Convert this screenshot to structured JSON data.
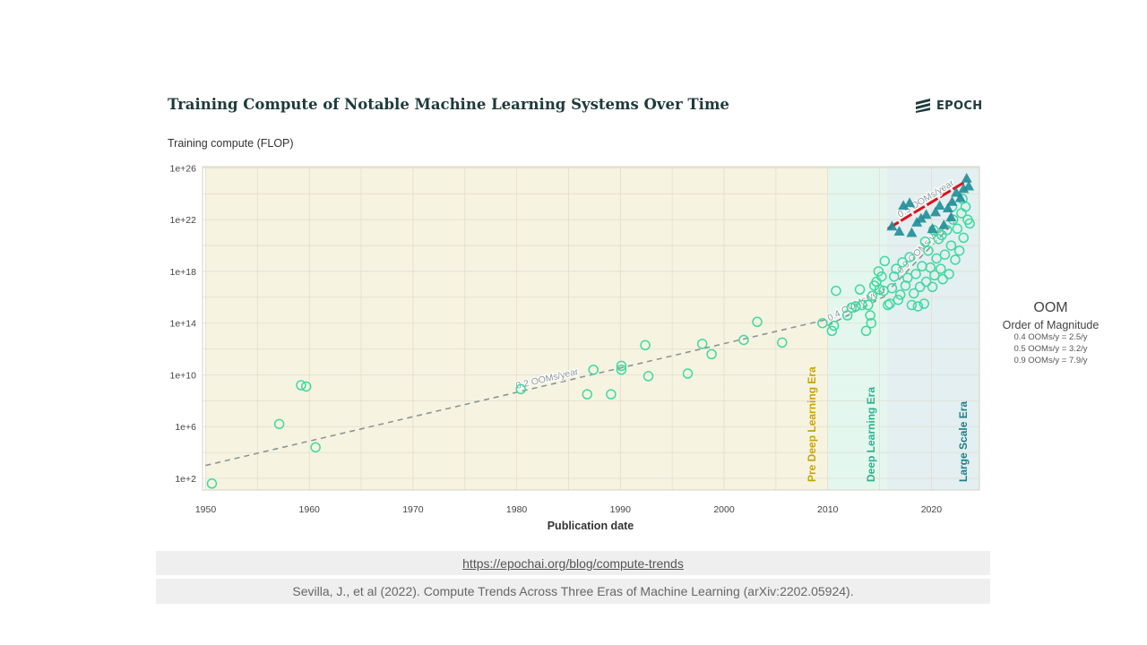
{
  "header": {
    "title": "Training Compute of Notable Machine Learning Systems Over Time",
    "logo_text": "EPOCH",
    "logo_icon": "epoch-stripes-icon"
  },
  "colors": {
    "pre_dl": "#c9a400",
    "dl": "#2bb38a",
    "large_scale": "#1b7f8a",
    "circle": "#3fd9a0",
    "triangle": "#1f8d98",
    "trend": "#8a9696",
    "red": "#e0101a"
  },
  "chart_data": {
    "type": "scatter",
    "title": "Training Compute of Notable Machine Learning Systems Over Time",
    "xlabel": "Publication date",
    "ylabel": "Training compute (FLOP)",
    "xlim": [
      1950,
      2025
    ],
    "ylim_log10": [
      1,
      26
    ],
    "x_ticks": [
      1950,
      1960,
      1970,
      1980,
      1990,
      2000,
      2010,
      2020
    ],
    "x_tick_labels": [
      "1950",
      "1960",
      "1970",
      "1980",
      "1990",
      "2000",
      "2010",
      "2020"
    ],
    "y_ticks_log10": [
      2,
      6,
      10,
      14,
      18,
      22,
      26
    ],
    "y_tick_labels": [
      "1e+2",
      "1e+6",
      "1e+10",
      "1e+14",
      "1e+18",
      "1e+22",
      "1e+26"
    ],
    "grid": true,
    "eras": [
      {
        "name": "Pre Deep Learning Era",
        "x0": 1950,
        "x1": 2010
      },
      {
        "name": "Deep Learning Era",
        "x0": 2010,
        "x1": 2015.7
      },
      {
        "name": "Large Scale Era",
        "x0": 2015.7,
        "x1": 2025
      }
    ],
    "trends": [
      {
        "label": "0.2 OOMs/year",
        "x0": 1950,
        "y0": 3.0,
        "x1": 2010,
        "y1": 14.3,
        "style": "dashed"
      },
      {
        "label": "0.4 OOMs/year",
        "x0": 2010,
        "y0": 13.8,
        "x1": 2015.8,
        "y1": 16.2,
        "style": "dashed"
      },
      {
        "label": "0.9 OOMs/year",
        "x0": 2016.2,
        "y0": 16.8,
        "x1": 2022.2,
        "y1": 21.8,
        "style": "dashed"
      },
      {
        "label": "0.5 OOMs/year",
        "x0": 2015.8,
        "y0": 21.3,
        "x1": 2023.4,
        "y1": 25.0,
        "style": "dashed-red"
      }
    ],
    "circles": [
      [
        1950.6,
        1.6
      ],
      [
        1957.1,
        6.2
      ],
      [
        1959.2,
        9.2
      ],
      [
        1959.7,
        9.1
      ],
      [
        1960.6,
        4.4
      ],
      [
        1980.4,
        8.9
      ],
      [
        1986.8,
        8.5
      ],
      [
        1987.4,
        10.4
      ],
      [
        1989.1,
        8.5
      ],
      [
        1990.1,
        10.7
      ],
      [
        1990.1,
        10.4
      ],
      [
        1992.4,
        12.3
      ],
      [
        1992.7,
        9.9
      ],
      [
        1996.5,
        10.1
      ],
      [
        1997.9,
        12.4
      ],
      [
        1998.8,
        11.6
      ],
      [
        2001.9,
        12.7
      ],
      [
        2003.2,
        14.1
      ],
      [
        2005.6,
        12.5
      ],
      [
        2009.5,
        14.0
      ],
      [
        2010.4,
        13.4
      ],
      [
        2010.6,
        13.8
      ],
      [
        2010.8,
        16.5
      ],
      [
        2011.9,
        14.6
      ],
      [
        2012.3,
        15.2
      ],
      [
        2012.7,
        15.3
      ],
      [
        2013.1,
        16.6
      ],
      [
        2013.3,
        15.4
      ],
      [
        2013.7,
        13.4
      ],
      [
        2013.9,
        15.4
      ],
      [
        2014.1,
        14.6
      ],
      [
        2014.2,
        14.0
      ],
      [
        2014.3,
        16.1
      ],
      [
        2014.5,
        16.9
      ],
      [
        2014.7,
        17.2
      ],
      [
        2014.9,
        18.0
      ],
      [
        2015.0,
        16.6
      ],
      [
        2015.2,
        17.6
      ],
      [
        2015.4,
        16.5
      ],
      [
        2015.5,
        18.8
      ],
      [
        2015.8,
        15.4
      ],
      [
        2016.0,
        15.5
      ],
      [
        2016.2,
        16.7
      ],
      [
        2016.4,
        17.6
      ],
      [
        2016.6,
        18.2
      ],
      [
        2016.8,
        15.8
      ],
      [
        2017.0,
        16.2
      ],
      [
        2017.2,
        18.7
      ],
      [
        2017.5,
        16.9
      ],
      [
        2017.7,
        17.5
      ],
      [
        2017.9,
        19.1
      ],
      [
        2018.1,
        15.4
      ],
      [
        2018.3,
        16.3
      ],
      [
        2018.5,
        17.8
      ],
      [
        2018.7,
        15.3
      ],
      [
        2018.9,
        16.8
      ],
      [
        2019.1,
        18.4
      ],
      [
        2019.3,
        15.5
      ],
      [
        2019.5,
        17.2
      ],
      [
        2019.7,
        19.6
      ],
      [
        2019.9,
        18.3
      ],
      [
        2020.1,
        16.8
      ],
      [
        2020.3,
        17.7
      ],
      [
        2020.5,
        19.0
      ],
      [
        2020.7,
        20.5
      ],
      [
        2020.9,
        18.2
      ],
      [
        2021.1,
        17.4
      ],
      [
        2021.3,
        19.3
      ],
      [
        2021.5,
        21.2
      ],
      [
        2021.7,
        17.8
      ],
      [
        2021.9,
        20.0
      ],
      [
        2022.1,
        22.0
      ],
      [
        2022.3,
        18.9
      ],
      [
        2022.5,
        21.3
      ],
      [
        2022.7,
        19.6
      ],
      [
        2022.9,
        22.5
      ],
      [
        2023.1,
        20.6
      ],
      [
        2023.3,
        23.0
      ],
      [
        2023.5,
        22.0
      ],
      [
        2023.7,
        21.7
      ],
      [
        2021.0,
        20.8
      ],
      [
        2020.2,
        21.2
      ],
      [
        2019.4,
        20.3
      ],
      [
        2022.0,
        23.0
      ],
      [
        2023.0,
        23.6
      ]
    ],
    "triangles": [
      [
        2016.2,
        21.5
      ],
      [
        2016.9,
        21.1
      ],
      [
        2017.3,
        23.1
      ],
      [
        2017.9,
        23.3
      ],
      [
        2018.6,
        21.8
      ],
      [
        2019.0,
        22.1
      ],
      [
        2019.5,
        22.4
      ],
      [
        2020.1,
        21.3
      ],
      [
        2020.4,
        22.6
      ],
      [
        2020.8,
        23.1
      ],
      [
        2021.2,
        21.6
      ],
      [
        2021.6,
        22.9
      ],
      [
        2022.0,
        23.4
      ],
      [
        2022.4,
        24.1
      ],
      [
        2022.8,
        23.7
      ],
      [
        2023.1,
        24.4
      ],
      [
        2023.4,
        25.2
      ],
      [
        2023.6,
        24.6
      ],
      [
        2021.9,
        22.2
      ],
      [
        2018.1,
        21.0
      ]
    ]
  },
  "legend": {
    "oom_title": "OOM",
    "oom_subtitle": "Order of Magnitude",
    "lines": [
      "0.4 OOMs/y = 2.5/y",
      "0.5 OOMs/y = 3.2/y",
      "0.9 OOMs/y = 7.9/y"
    ]
  },
  "footer": {
    "link": "https://epochai.org/blog/compute-trends",
    "citation": "Sevilla, J., et al (2022). Compute Trends Across Three Eras of Machine Learning (arXiv:2202.05924)."
  }
}
